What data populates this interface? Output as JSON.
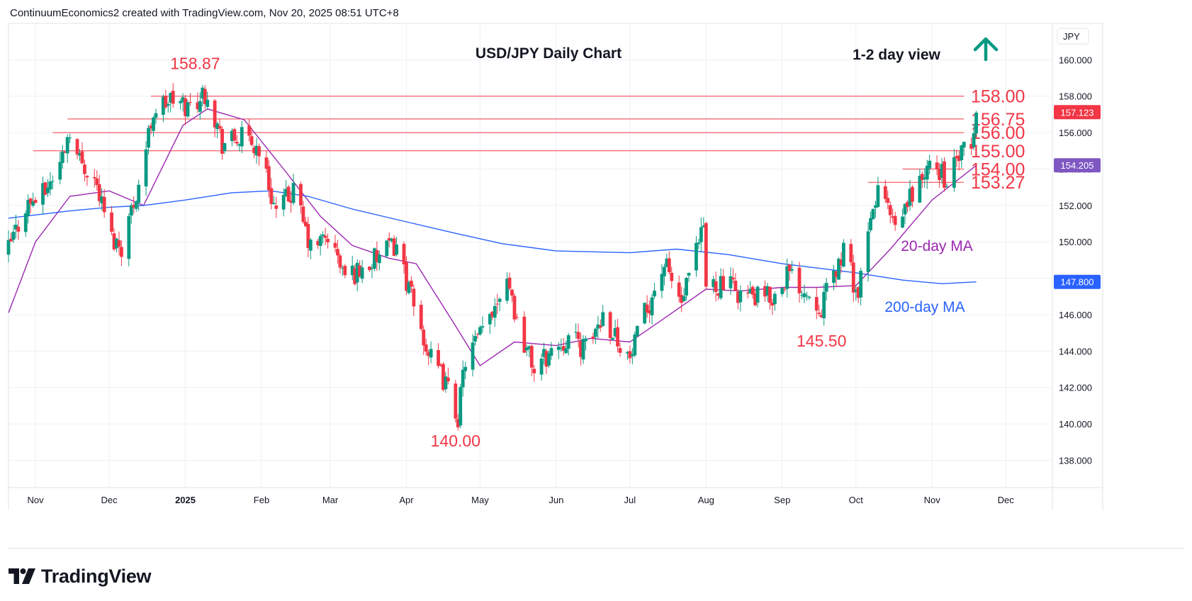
{
  "header": {
    "attribution": "ContinuumEconomics2 created with TradingView.com, Nov 20, 2025 08:51 UTC+8"
  },
  "footer": {
    "brand": "TradingView"
  },
  "chart_data": {
    "type": "candlestick",
    "title": "USD/JPY Daily Chart",
    "subtitle": "1-2 day view",
    "direction_arrow": "up",
    "currency_label": "JPY",
    "ylim": [
      136.5,
      162.0
    ],
    "x_range": [
      "2024-10-21",
      "2025-12-20"
    ],
    "y_ticks": [
      "138.000",
      "140.000",
      "142.000",
      "144.000",
      "146.000",
      "148.000",
      "150.000",
      "152.000",
      "154.000",
      "156.000",
      "158.000",
      "160.000"
    ],
    "x_ticks": [
      {
        "label": "Nov",
        "date": "2024-11-01",
        "bold": false
      },
      {
        "label": "Dec",
        "date": "2024-12-01",
        "bold": false
      },
      {
        "label": "2025",
        "date": "2025-01-01",
        "bold": true
      },
      {
        "label": "Feb",
        "date": "2025-02-01",
        "bold": false
      },
      {
        "label": "Mar",
        "date": "2025-03-01",
        "bold": false
      },
      {
        "label": "Apr",
        "date": "2025-04-01",
        "bold": false
      },
      {
        "label": "May",
        "date": "2025-05-01",
        "bold": false
      },
      {
        "label": "Jun",
        "date": "2025-06-01",
        "bold": false
      },
      {
        "label": "Jul",
        "date": "2025-07-01",
        "bold": false
      },
      {
        "label": "Aug",
        "date": "2025-08-01",
        "bold": false
      },
      {
        "label": "Sep",
        "date": "2025-09-01",
        "bold": false
      },
      {
        "label": "Oct",
        "date": "2025-10-01",
        "bold": false
      },
      {
        "label": "Nov",
        "date": "2025-11-01",
        "bold": false
      },
      {
        "label": "Dec",
        "date": "2025-12-01",
        "bold": false
      }
    ],
    "closes": [
      {
        "date": "2024-10-21",
        "close": 149.6
      },
      {
        "date": "2024-10-28",
        "close": 152.0
      },
      {
        "date": "2024-11-04",
        "close": 152.6
      },
      {
        "date": "2024-11-11",
        "close": 154.3
      },
      {
        "date": "2024-11-15",
        "close": 156.3
      },
      {
        "date": "2024-11-18",
        "close": 154.7
      },
      {
        "date": "2024-11-25",
        "close": 153.5
      },
      {
        "date": "2024-12-02",
        "close": 150.2
      },
      {
        "date": "2024-12-06",
        "close": 149.8
      },
      {
        "date": "2024-12-13",
        "close": 153.2
      },
      {
        "date": "2024-12-19",
        "close": 157.2
      },
      {
        "date": "2024-12-26",
        "close": 157.8
      },
      {
        "date": "2025-01-02",
        "close": 157.4
      },
      {
        "date": "2025-01-10",
        "close": 158.3
      },
      {
        "date": "2025-01-16",
        "close": 155.4
      },
      {
        "date": "2025-01-24",
        "close": 155.7
      },
      {
        "date": "2025-01-31",
        "close": 155.1
      },
      {
        "date": "2025-02-07",
        "close": 151.6
      },
      {
        "date": "2025-02-14",
        "close": 152.8
      },
      {
        "date": "2025-02-21",
        "close": 149.6
      },
      {
        "date": "2025-02-28",
        "close": 150.3
      },
      {
        "date": "2025-03-07",
        "close": 148.1
      },
      {
        "date": "2025-03-14",
        "close": 148.5
      },
      {
        "date": "2025-03-21",
        "close": 149.2
      },
      {
        "date": "2025-03-28",
        "close": 149.9
      },
      {
        "date": "2025-04-04",
        "close": 146.4
      },
      {
        "date": "2025-04-11",
        "close": 143.5
      },
      {
        "date": "2025-04-17",
        "close": 142.2
      },
      {
        "date": "2025-04-22",
        "close": 140.4
      },
      {
        "date": "2025-04-25",
        "close": 143.6
      },
      {
        "date": "2025-05-02",
        "close": 145.0
      },
      {
        "date": "2025-05-12",
        "close": 148.3
      },
      {
        "date": "2025-05-16",
        "close": 145.6
      },
      {
        "date": "2025-05-23",
        "close": 143.0
      },
      {
        "date": "2025-05-30",
        "close": 144.0
      },
      {
        "date": "2025-06-06",
        "close": 144.8
      },
      {
        "date": "2025-06-13",
        "close": 144.1
      },
      {
        "date": "2025-06-20",
        "close": 146.0
      },
      {
        "date": "2025-06-27",
        "close": 144.5
      },
      {
        "date": "2025-07-01",
        "close": 143.5
      },
      {
        "date": "2025-07-07",
        "close": 146.0
      },
      {
        "date": "2025-07-15",
        "close": 148.8
      },
      {
        "date": "2025-07-22",
        "close": 146.6
      },
      {
        "date": "2025-07-31",
        "close": 150.7
      },
      {
        "date": "2025-08-01",
        "close": 147.6
      },
      {
        "date": "2025-08-08",
        "close": 147.7
      },
      {
        "date": "2025-08-15",
        "close": 147.2
      },
      {
        "date": "2025-08-22",
        "close": 146.9
      },
      {
        "date": "2025-08-29",
        "close": 147.0
      },
      {
        "date": "2025-09-03",
        "close": 148.3
      },
      {
        "date": "2025-09-10",
        "close": 147.4
      },
      {
        "date": "2025-09-17",
        "close": 146.5
      },
      {
        "date": "2025-09-24",
        "close": 148.8
      },
      {
        "date": "2025-09-26",
        "close": 149.5
      },
      {
        "date": "2025-10-02",
        "close": 147.0
      },
      {
        "date": "2025-10-06",
        "close": 150.3
      },
      {
        "date": "2025-10-10",
        "close": 153.0
      },
      {
        "date": "2025-10-14",
        "close": 151.8
      },
      {
        "date": "2025-10-17",
        "close": 150.4
      },
      {
        "date": "2025-10-24",
        "close": 152.8
      },
      {
        "date": "2025-10-31",
        "close": 154.0
      },
      {
        "date": "2025-11-05",
        "close": 153.9
      },
      {
        "date": "2025-11-07",
        "close": 153.2
      },
      {
        "date": "2025-11-12",
        "close": 154.7
      },
      {
        "date": "2025-11-17",
        "close": 155.1
      },
      {
        "date": "2025-11-19",
        "close": 157.1
      }
    ],
    "series": [
      {
        "name": "20-day MA",
        "color": "#9c27b0",
        "points": [
          {
            "date": "2024-10-21",
            "value": 146.1
          },
          {
            "date": "2024-11-01",
            "value": 150.0
          },
          {
            "date": "2024-11-15",
            "value": 152.5
          },
          {
            "date": "2024-12-01",
            "value": 152.8
          },
          {
            "date": "2024-12-15",
            "value": 152.0
          },
          {
            "date": "2024-12-31",
            "value": 156.4
          },
          {
            "date": "2025-01-10",
            "value": 157.3
          },
          {
            "date": "2025-01-25",
            "value": 156.7
          },
          {
            "date": "2025-02-10",
            "value": 154.0
          },
          {
            "date": "2025-02-25",
            "value": 151.4
          },
          {
            "date": "2025-03-10",
            "value": 149.8
          },
          {
            "date": "2025-03-25",
            "value": 149.1
          },
          {
            "date": "2025-04-05",
            "value": 148.8
          },
          {
            "date": "2025-04-20",
            "value": 145.6
          },
          {
            "date": "2025-05-01",
            "value": 143.2
          },
          {
            "date": "2025-05-15",
            "value": 144.5
          },
          {
            "date": "2025-06-01",
            "value": 144.3
          },
          {
            "date": "2025-06-15",
            "value": 144.7
          },
          {
            "date": "2025-07-01",
            "value": 144.5
          },
          {
            "date": "2025-07-15",
            "value": 145.8
          },
          {
            "date": "2025-08-01",
            "value": 147.4
          },
          {
            "date": "2025-08-15",
            "value": 147.3
          },
          {
            "date": "2025-09-01",
            "value": 147.5
          },
          {
            "date": "2025-09-15",
            "value": 147.5
          },
          {
            "date": "2025-10-01",
            "value": 147.6
          },
          {
            "date": "2025-10-15",
            "value": 149.6
          },
          {
            "date": "2025-11-01",
            "value": 152.3
          },
          {
            "date": "2025-11-19",
            "value": 154.2
          }
        ]
      },
      {
        "name": "200-day MA",
        "color": "#2962ff",
        "points": [
          {
            "date": "2024-10-21",
            "value": 151.3
          },
          {
            "date": "2024-11-15",
            "value": 151.7
          },
          {
            "date": "2024-12-01",
            "value": 151.9
          },
          {
            "date": "2024-12-15",
            "value": 152.0
          },
          {
            "date": "2025-01-01",
            "value": 152.3
          },
          {
            "date": "2025-01-20",
            "value": 152.7
          },
          {
            "date": "2025-02-05",
            "value": 152.8
          },
          {
            "date": "2025-02-20",
            "value": 152.5
          },
          {
            "date": "2025-03-10",
            "value": 151.8
          },
          {
            "date": "2025-04-01",
            "value": 151.1
          },
          {
            "date": "2025-04-20",
            "value": 150.5
          },
          {
            "date": "2025-05-10",
            "value": 149.9
          },
          {
            "date": "2025-06-01",
            "value": 149.5
          },
          {
            "date": "2025-07-01",
            "value": 149.4
          },
          {
            "date": "2025-07-20",
            "value": 149.6
          },
          {
            "date": "2025-08-10",
            "value": 149.3
          },
          {
            "date": "2025-09-01",
            "value": 148.8
          },
          {
            "date": "2025-10-01",
            "value": 148.3
          },
          {
            "date": "2025-10-20",
            "value": 147.9
          },
          {
            "date": "2025-11-05",
            "value": 147.7
          },
          {
            "date": "2025-11-19",
            "value": 147.8
          }
        ]
      }
    ],
    "levels": [
      {
        "value": 158.0,
        "label": "158.00",
        "from": "2024-12-18"
      },
      {
        "value": 156.75,
        "label": "156.75",
        "from": "2024-11-14"
      },
      {
        "value": 156.0,
        "label": "156.00",
        "from": "2024-11-08"
      },
      {
        "value": 155.0,
        "label": "155.00",
        "from": "2024-10-31"
      },
      {
        "value": 154.0,
        "label": "154.00",
        "from": "2025-10-20"
      },
      {
        "value": 153.27,
        "label": "153.27",
        "from": "2025-10-06"
      }
    ],
    "annotations": [
      {
        "text": "158.87",
        "date": "2025-01-05",
        "value": 158.87,
        "color": "#f23645"
      },
      {
        "text": "140.00",
        "date": "2025-04-21",
        "value": 140.0,
        "color": "#f23645"
      },
      {
        "text": "145.50",
        "date": "2025-09-17",
        "value": 145.5,
        "color": "#f23645"
      },
      {
        "text": "20-day MA",
        "color": "#9c27b0"
      },
      {
        "text": "200-day MA",
        "color": "#2962ff"
      }
    ],
    "price_tags": [
      {
        "value": 157.123,
        "label": "157.123",
        "color": "#f23645"
      },
      {
        "value": 154.205,
        "label": "154.205",
        "color": "#7e57c2"
      },
      {
        "value": 147.8,
        "label": "147.800",
        "color": "#2962ff"
      }
    ],
    "colors": {
      "up": "#089981",
      "down": "#f23645",
      "level": "#f23645",
      "grid": "#eef0f4"
    },
    "grid": true
  }
}
